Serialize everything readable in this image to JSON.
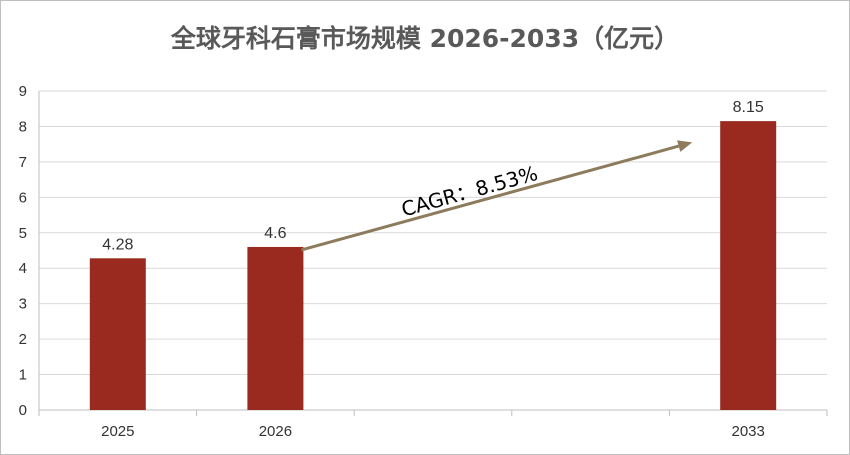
{
  "chart_data": {
    "type": "bar",
    "title": "全球牙科石膏市场规模 2026-2033（亿元）",
    "categories": [
      "2025",
      "2026",
      "2033"
    ],
    "category_slots": 5,
    "category_slot_index": [
      0,
      1,
      4
    ],
    "values": [
      4.28,
      4.6,
      8.15
    ],
    "data_labels": [
      "4.28",
      "4.6",
      "8.15"
    ],
    "xlabel": "",
    "ylabel": "",
    "ylim": [
      0,
      9
    ],
    "yticks": [
      "0",
      "1",
      "2",
      "3",
      "4",
      "5",
      "6",
      "7",
      "8",
      "9"
    ],
    "grid": true,
    "legend": "none",
    "bar_color": "#9A2A1F",
    "annotation": {
      "text": "CAGR：8.53%",
      "arrow_color": "#8C7B5C",
      "from_category_slot": 1,
      "to_category_slot": 4
    }
  }
}
